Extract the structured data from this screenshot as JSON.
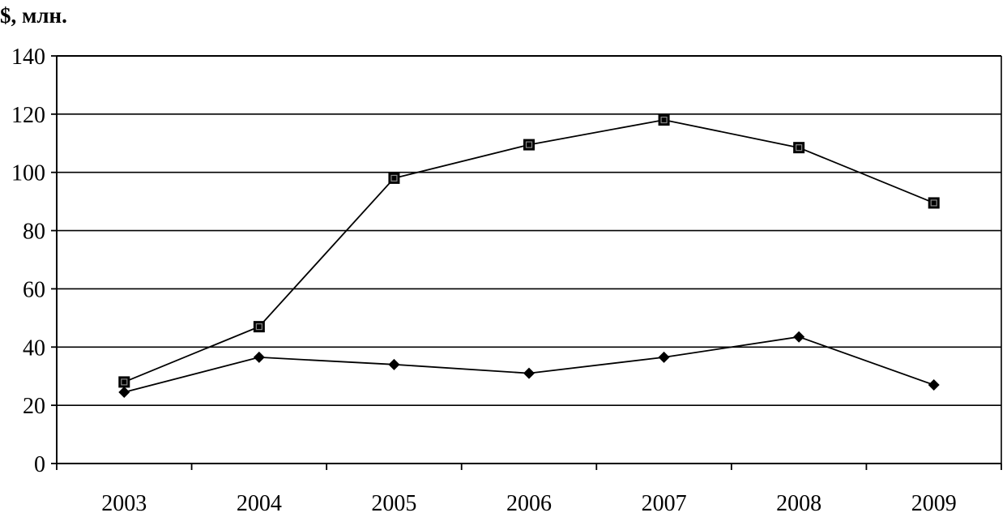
{
  "chart_data": {
    "type": "line",
    "title": "",
    "xlabel": "",
    "ylabel": "$, млн.",
    "categories": [
      "2003",
      "2004",
      "2005",
      "2006",
      "2007",
      "2008",
      "2009"
    ],
    "ylim": [
      0,
      140
    ],
    "yticks": [
      0,
      20,
      40,
      60,
      80,
      100,
      120,
      140
    ],
    "grid": true,
    "legend": "none",
    "series": [
      {
        "marker": "square",
        "values": [
          28,
          47,
          98,
          109.5,
          118,
          108.5,
          89.5
        ]
      },
      {
        "marker": "diamond",
        "values": [
          24.5,
          36.5,
          34,
          31,
          36.5,
          43.5,
          27
        ]
      }
    ],
    "colors": {
      "line": "#000000",
      "grid": "#000000",
      "marker": "#000000"
    }
  }
}
